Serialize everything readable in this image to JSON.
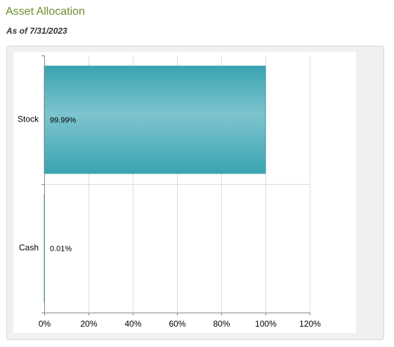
{
  "chart_data": {
    "type": "bar",
    "orientation": "horizontal",
    "title": "Asset Allocation",
    "subtitle": "As of 7/31/2023",
    "categories": [
      "Stock",
      "Cash"
    ],
    "values": [
      99.99,
      0.01
    ],
    "value_labels": [
      "99.99%",
      "0.01%"
    ],
    "color": "#3aa5b1",
    "xlim": [
      0,
      120
    ],
    "xticks": [
      {
        "value": 0,
        "label": "0%"
      },
      {
        "value": 20,
        "label": "20%"
      },
      {
        "value": 40,
        "label": "40%"
      },
      {
        "value": 60,
        "label": "60%"
      },
      {
        "value": 80,
        "label": "80%"
      },
      {
        "value": 100,
        "label": "100%"
      },
      {
        "value": 120,
        "label": "120%"
      }
    ],
    "grid": true
  }
}
